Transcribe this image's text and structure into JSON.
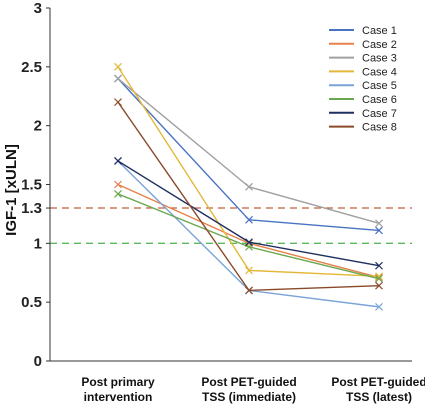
{
  "chart_data": {
    "type": "line",
    "title": "",
    "xlabel": "",
    "ylabel": "IGF-1 [xULN]",
    "ylim": [
      0,
      3
    ],
    "y_ticks": [
      0,
      0.5,
      1,
      1.3,
      1.5,
      2,
      2.5,
      3
    ],
    "y_tick_labels": [
      "0",
      "0.5",
      "1",
      "1.3",
      "1.5",
      "2",
      "2.5",
      "3"
    ],
    "categories": [
      [
        "Post primary",
        "intervention"
      ],
      [
        "Post PET-guided",
        "TSS (immediate)"
      ],
      [
        "Post PET-guided",
        "TSS (latest)"
      ]
    ],
    "reference_lines": [
      {
        "y": 1.3,
        "color": "#c0603a",
        "style": "dashed"
      },
      {
        "y": 1.0,
        "color": "#5cb85c",
        "style": "dashed"
      }
    ],
    "legend_position": "top-right",
    "grid": false,
    "series": [
      {
        "name": "Case 1",
        "color": "#4a72c4",
        "values": [
          2.4,
          1.2,
          1.11
        ]
      },
      {
        "name": "Case 2",
        "color": "#e8804a",
        "values": [
          1.5,
          1.0,
          0.71
        ]
      },
      {
        "name": "Case 3",
        "color": "#a0a0a0",
        "values": [
          2.4,
          1.48,
          1.17
        ]
      },
      {
        "name": "Case 4",
        "color": "#e3b83a",
        "values": [
          2.5,
          0.77,
          0.72
        ]
      },
      {
        "name": "Case 5",
        "color": "#7aa4d8",
        "values": [
          1.7,
          0.6,
          0.46
        ]
      },
      {
        "name": "Case 6",
        "color": "#6aa84f",
        "values": [
          1.42,
          0.97,
          0.7
        ]
      },
      {
        "name": "Case 7",
        "color": "#1f2f5e",
        "values": [
          1.7,
          1.01,
          0.81
        ]
      },
      {
        "name": "Case 8",
        "color": "#8a4a2a",
        "values": [
          2.2,
          0.6,
          0.64
        ]
      }
    ]
  }
}
